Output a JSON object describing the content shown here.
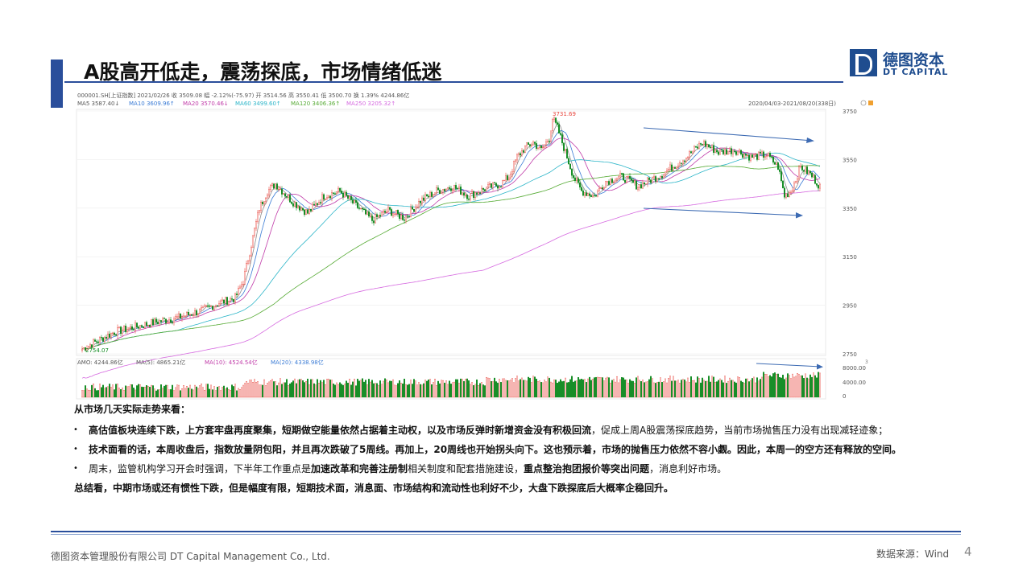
{
  "slide": {
    "title": "A股高开低走，震荡探底，市场情绪低迷",
    "logo_cn": "德图资本",
    "logo_en": "DT CAPITAL",
    "brand_color": "#2a4e9b"
  },
  "chart": {
    "header": "000001.SH[上证指数]    2021/02/26  收 3509.08  幅 -2.12%(-75.97)  开 3514.56  高 3550.41  低 3500.70  换 1.39%  4244.86亿",
    "ma_line": {
      "ma5": "MA5  3587.40↓",
      "ma10": "MA10  3609.96↑",
      "ma20": "MA20  3570.46↓",
      "ma60": "MA60  3499.60↑",
      "ma120": "MA120  3406.36↑",
      "ma250": "MA250  3205.32↑"
    },
    "date_range": "2020/04/03-2021/08/20(338日)",
    "y_axis_ticks": [
      "3750",
      "3550",
      "3350",
      "3150",
      "2950",
      "2750"
    ],
    "high_label": "3731.69",
    "low_label": "2754.07",
    "volume_header": {
      "amo": "AMO: 4244.86亿",
      "ma5": "MA(5): 4865.21亿",
      "ma10": "MA(10): 4524.54亿",
      "ma20": "MA(20): 4338.98亿"
    },
    "volume_ticks": [
      "8000.00",
      "4000.00",
      "0"
    ],
    "volume_unit": "3",
    "colors": {
      "up": "#e8473e",
      "down": "#0f8a1f",
      "ma5": "#8c8c8c",
      "ma10": "#3a7bd5",
      "ma20": "#c03aa8",
      "ma60": "#2cb5c8",
      "ma120": "#55aa33",
      "ma250": "#d66ae0",
      "arrow": "#3d6bb3"
    }
  },
  "body": {
    "lead": "从市场几天实际走势来看：",
    "bullet1_bold": "高估值板块连续下跌，上方套牢盘再度聚集，短期做空能量依然占据着主动权，以及市场反弹时新增资金没有积极回流",
    "bullet1_rest": "，促成上周A股震荡探底趋势，当前市场抛售压力没有出现减轻迹象；",
    "bullet2": "技术面看的话，本周收盘后，指数放量阴包阳，并且再次跌破了5周线。再加上，20周线也开始拐头向下。这也预示着，市场的抛售压力依然不容小觑。因此，本周一的空方还有释放的空间。",
    "bullet3_a": "周末，监管机构学习开会时强调，下半年工作重点是",
    "bullet3_b": "加速改革和完善注册制",
    "bullet3_c": "相关制度和配套措施建设，",
    "bullet3_d": "重点整治抱团报价等突出问题",
    "bullet3_e": "，消息利好市场。",
    "summary": "总结看，中期市场或还有惯性下跌，但是幅度有限，短期技术面，消息面、市场结构和流动性也利好不少，大盘下跌探底后大概率企稳回升。"
  },
  "footer": {
    "company": "德图资本管理股份有限公司  DT Capital Management  Co., Ltd.",
    "source": "数据来源：Wind",
    "page": "4"
  }
}
